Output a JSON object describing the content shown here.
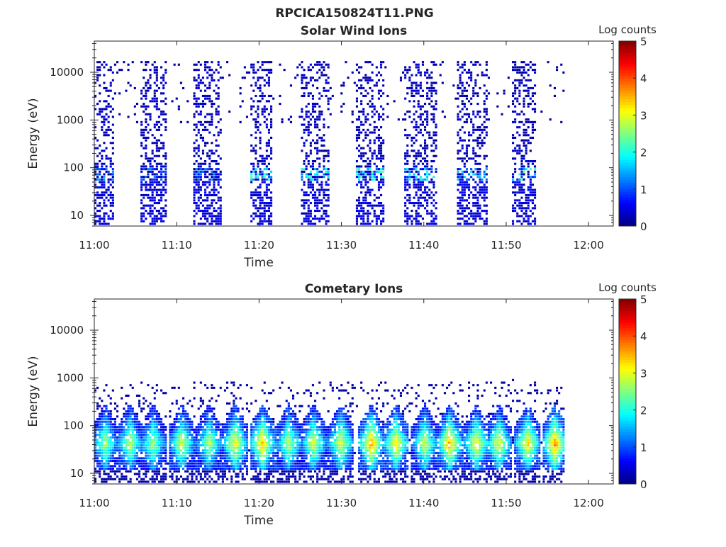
{
  "figure": {
    "title": "RPCICA150824T11.PNG"
  },
  "chart_data": [
    {
      "type": "heatmap",
      "title": "Solar Wind Ions",
      "xlabel": "Time",
      "ylabel": "Energy (eV)",
      "x_ticks": [
        "11:00",
        "11:10",
        "11:20",
        "11:30",
        "11:40",
        "11:50",
        "12:00"
      ],
      "x_range_minutes": [
        0,
        63
      ],
      "y_scale": "log",
      "y_ticks": [
        10,
        100,
        1000,
        10000
      ],
      "y_tick_labels": [
        "10",
        "100",
        "1000",
        "10000"
      ],
      "y_range": [
        6,
        45000
      ],
      "colorbar": {
        "label": "Log counts",
        "range": [
          0,
          5
        ],
        "ticks": [
          "0",
          "1",
          "2",
          "3",
          "4",
          "5"
        ],
        "colormap": "jet"
      },
      "sweeps": [
        {
          "start_min": 0.0,
          "end_min": 2.4,
          "max_log_counts": 1.5
        },
        {
          "start_min": 5.5,
          "end_min": 8.8,
          "max_log_counts": 1.3
        },
        {
          "start_min": 12.0,
          "end_min": 15.3,
          "max_log_counts": 1.4
        },
        {
          "start_min": 18.7,
          "end_min": 21.5,
          "max_log_counts": 2.4
        },
        {
          "start_min": 25.0,
          "end_min": 28.5,
          "max_log_counts": 2.2
        },
        {
          "start_min": 31.5,
          "end_min": 35.0,
          "max_log_counts": 2.6
        },
        {
          "start_min": 37.5,
          "end_min": 41.5,
          "max_log_counts": 2.0
        },
        {
          "start_min": 44.0,
          "end_min": 47.5,
          "max_log_counts": 1.8
        },
        {
          "start_min": 50.5,
          "end_min": 53.5,
          "max_log_counts": 2.4
        }
      ]
    },
    {
      "type": "heatmap",
      "title": "Cometary Ions",
      "xlabel": "Time",
      "ylabel": "Energy (eV)",
      "x_ticks": [
        "11:00",
        "11:10",
        "11:20",
        "11:30",
        "11:40",
        "11:50",
        "12:00"
      ],
      "x_range_minutes": [
        0,
        63
      ],
      "y_scale": "log",
      "y_ticks": [
        10,
        100,
        1000,
        10000
      ],
      "y_tick_labels": [
        "10",
        "100",
        "1000",
        "10000"
      ],
      "y_range": [
        6,
        45000
      ],
      "colorbar": {
        "label": "Log counts",
        "range": [
          0,
          5
        ],
        "ticks": [
          "0",
          "1",
          "2",
          "3",
          "4",
          "5"
        ],
        "colormap": "jet"
      },
      "sweeps": [
        {
          "center_min": 1.2,
          "max_log_counts": 2.8
        },
        {
          "center_min": 4.2,
          "max_log_counts": 2.9
        },
        {
          "center_min": 7.0,
          "max_log_counts": 2.7
        },
        {
          "center_min": 10.5,
          "max_log_counts": 3.0
        },
        {
          "center_min": 13.8,
          "max_log_counts": 2.8
        },
        {
          "center_min": 17.0,
          "max_log_counts": 3.3
        },
        {
          "center_min": 20.3,
          "max_log_counts": 3.6
        },
        {
          "center_min": 23.5,
          "max_log_counts": 2.9
        },
        {
          "center_min": 26.5,
          "max_log_counts": 3.0
        },
        {
          "center_min": 29.8,
          "max_log_counts": 3.1
        },
        {
          "center_min": 33.5,
          "max_log_counts": 3.7
        },
        {
          "center_min": 36.5,
          "max_log_counts": 3.4
        },
        {
          "center_min": 40.0,
          "max_log_counts": 3.0
        },
        {
          "center_min": 43.0,
          "max_log_counts": 3.6
        },
        {
          "center_min": 46.3,
          "max_log_counts": 3.2
        },
        {
          "center_min": 49.0,
          "max_log_counts": 3.1
        },
        {
          "center_min": 52.5,
          "max_log_counts": 3.4
        },
        {
          "center_min": 55.8,
          "max_log_counts": 3.8
        }
      ]
    }
  ]
}
